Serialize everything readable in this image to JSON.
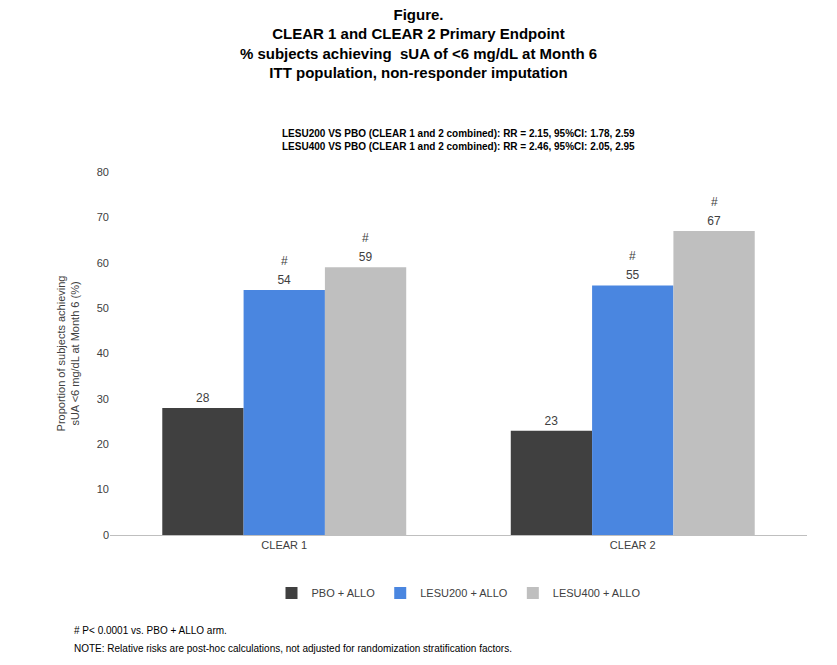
{
  "chart_data": {
    "type": "bar",
    "title": [
      "Figure.",
      "CLEAR 1 and CLEAR 2 Primary Endpoint",
      "% subjects achieving  sUA of <6 mg/dL at Month 6",
      "ITT population, non-responder imputation"
    ],
    "subtitle": [
      "LESU200 VS PBO (CLEAR 1 and 2 combined): RR = 2.15, 95%CI: 1.78, 2.59",
      "LESU400 VS PBO (CLEAR 1 and 2 combined): RR = 2.46, 95%CI: 2.05, 2.95"
    ],
    "y_label": [
      "Proportion of subjects achieving",
      "sUA <6 mg/dL at Month 6 (%)"
    ],
    "categories": [
      "CLEAR 1",
      "CLEAR 2"
    ],
    "series": [
      {
        "name": "PBO + ALLO",
        "color": "#404040",
        "values": [
          28,
          23
        ]
      },
      {
        "name": "LESU200 + ALLO",
        "color": "#4a86e0",
        "values": [
          54,
          55
        ]
      },
      {
        "name": "LESU400 + ALLO",
        "color": "#bfbfbf",
        "values": [
          59,
          67
        ]
      }
    ],
    "annotations": [
      {
        "text": "#",
        "series": "LESU200 + ALLO",
        "category": "CLEAR 1"
      },
      {
        "text": "#",
        "series": "LESU400 + ALLO",
        "category": "CLEAR 1"
      },
      {
        "text": "#",
        "series": "LESU200 + ALLO",
        "category": "CLEAR 2"
      },
      {
        "text": "#",
        "series": "LESU400 + ALLO",
        "category": "CLEAR 2"
      }
    ],
    "footnotes": [
      "# P< 0.0001 vs. PBO + ALLO arm.",
      "NOTE: Relative risks are post-hoc calculations, not adjusted for randomization stratification factors."
    ],
    "ylim": [
      0,
      80
    ],
    "yticks": [
      0,
      10,
      20,
      30,
      40,
      50,
      60,
      70,
      80
    ],
    "grid": false,
    "data_labels": true,
    "legend": "bottom"
  }
}
